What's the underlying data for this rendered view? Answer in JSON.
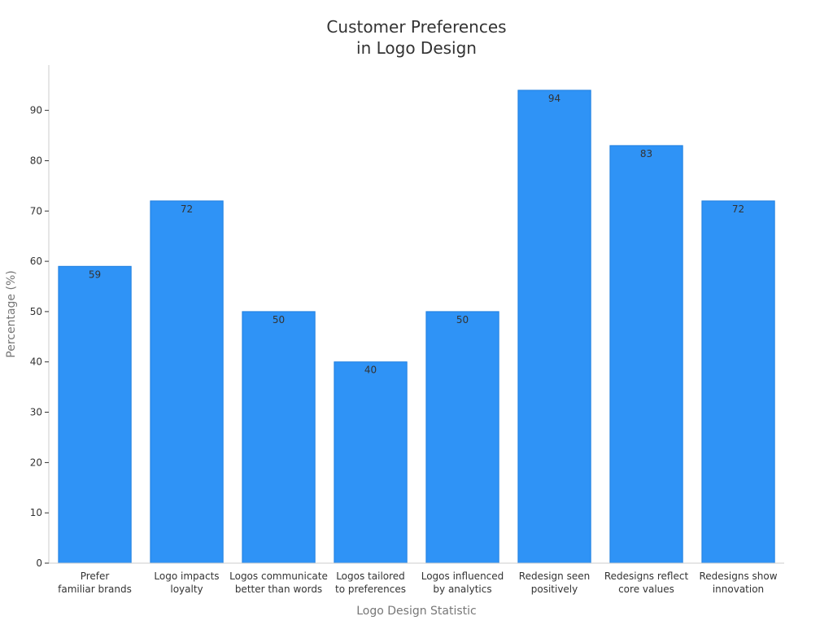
{
  "chart_data": {
    "type": "bar",
    "title": [
      "Customer Preferences",
      "in Logo Design"
    ],
    "xlabel": "Logo Design Statistic",
    "ylabel": "Percentage (%)",
    "ylim": [
      0,
      99
    ],
    "yticks": [
      0,
      10,
      20,
      30,
      40,
      50,
      60,
      70,
      80,
      90
    ],
    "grid": false,
    "categories": [
      [
        "Prefer",
        "familiar brands"
      ],
      [
        "Logo impacts",
        "loyalty"
      ],
      [
        "Logos communicate",
        "better than words"
      ],
      [
        "Logos tailored",
        "to preferences"
      ],
      [
        "Logos influenced",
        "by analytics"
      ],
      [
        "Redesign seen",
        "positively"
      ],
      [
        "Redesigns reflect",
        "core values"
      ],
      [
        "Redesigns show",
        "innovation"
      ]
    ],
    "values": [
      59,
      72,
      50,
      40,
      50,
      94,
      83,
      72
    ],
    "colors": {
      "bar": "#2f93f6",
      "bar_edge": "#1f7fe0"
    }
  }
}
